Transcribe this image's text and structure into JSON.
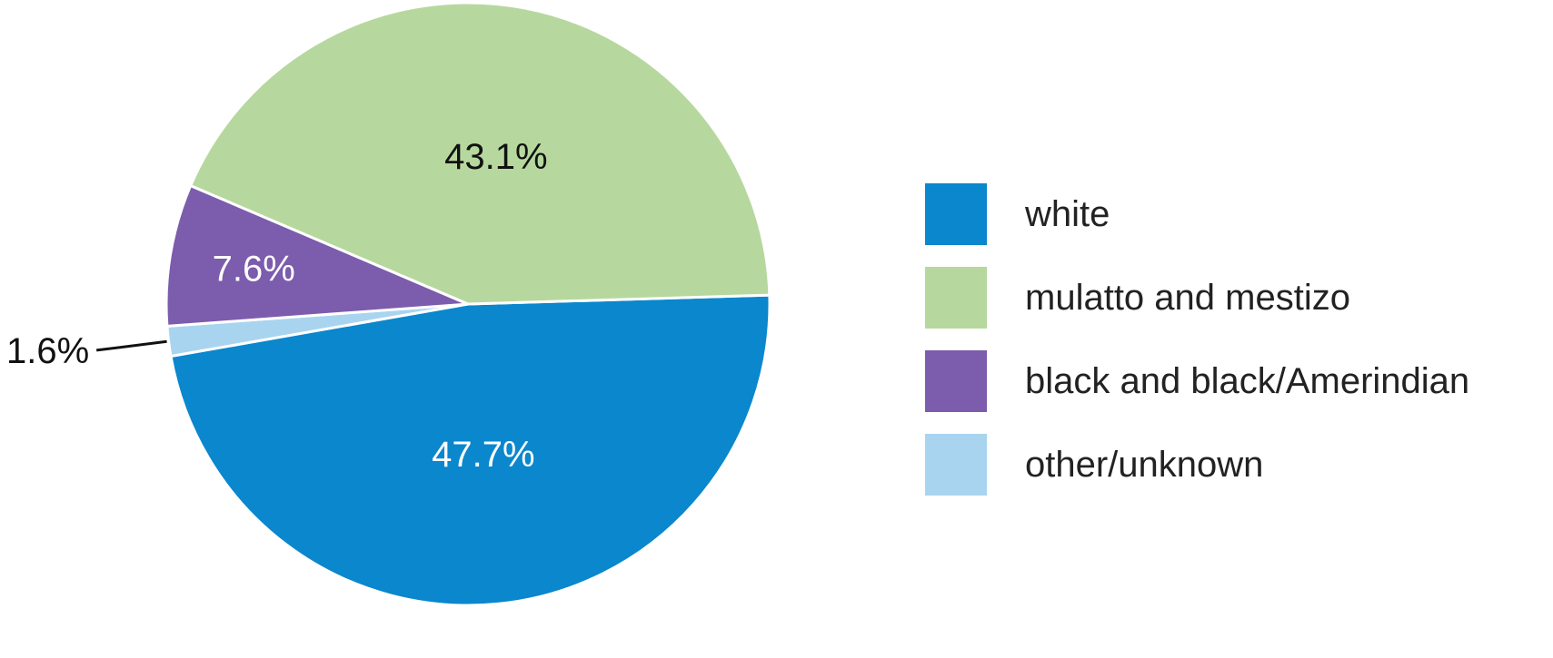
{
  "chart_data": {
    "type": "pie",
    "start_angle_deg": 88.3,
    "direction": "clockwise",
    "slices": [
      {
        "label": "white",
        "value": 47.7,
        "value_label": "47.7%",
        "color": "#0a87cd",
        "label_color": "#ffffff"
      },
      {
        "label": "other/unknown",
        "value": 1.6,
        "value_label": "1.6%",
        "color": "#a9d4f0",
        "label_color": "#111111"
      },
      {
        "label": "black and black/Amerindian",
        "value": 7.6,
        "value_label": "7.6%",
        "color": "#7c5cad",
        "label_color": "#ffffff"
      },
      {
        "label": "mulatto and mestizo",
        "value": 43.1,
        "value_label": "43.1%",
        "color": "#b6d89e",
        "label_color": "#111111"
      }
    ],
    "legend_position": "right"
  }
}
